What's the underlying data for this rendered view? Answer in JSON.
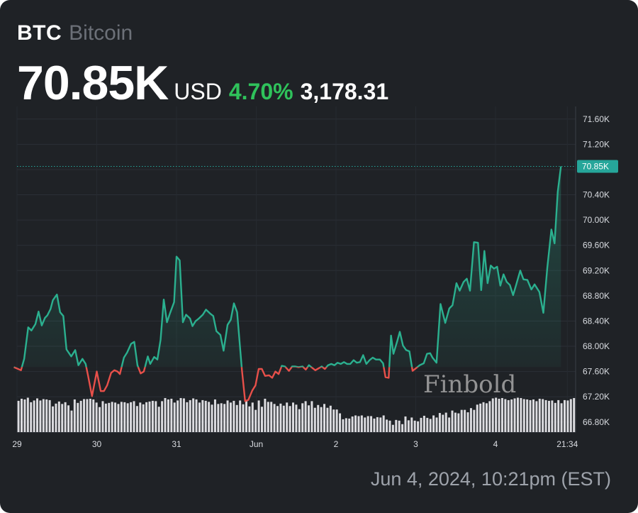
{
  "header": {
    "ticker": "BTC",
    "name": "Bitcoin"
  },
  "quote": {
    "price": "70.85K",
    "currency": "USD",
    "change_pct": "4.70%",
    "change_abs": "3,178.31"
  },
  "footer": {
    "timestamp": "Jun 4, 2024, 10:21pm (EST)"
  },
  "watermark": "Finbold",
  "colors": {
    "background": "#1f2226",
    "up": "#2bb08f",
    "down": "#e8504a",
    "positive_text": "#2fc25b",
    "volume": "#dcdce0",
    "last_price_tag": "#26a69a"
  },
  "chart_data": {
    "type": "line",
    "x_unit": "days since 00:00, May 29",
    "ylim": [
      66640,
      71800
    ],
    "y_ticks": [
      {
        "value": 71600,
        "label": "71.60K"
      },
      {
        "value": 71200,
        "label": "71.20K"
      },
      {
        "value": 70800,
        "label": "70.80K"
      },
      {
        "value": 70400,
        "label": "70.40K"
      },
      {
        "value": 70000,
        "label": "70.00K"
      },
      {
        "value": 69600,
        "label": "69.60K"
      },
      {
        "value": 69200,
        "label": "69.20K"
      },
      {
        "value": 68800,
        "label": "68.80K"
      },
      {
        "value": 68400,
        "label": "68.40K"
      },
      {
        "value": 68000,
        "label": "68.00K"
      },
      {
        "value": 67600,
        "label": "67.60K"
      },
      {
        "value": 67200,
        "label": "67.20K"
      },
      {
        "value": 66800,
        "label": "66.80K"
      }
    ],
    "x_ticks": [
      {
        "value": 0,
        "label": "29"
      },
      {
        "value": 1,
        "label": "30"
      },
      {
        "value": 2,
        "label": "31"
      },
      {
        "value": 3,
        "label": "Jun"
      },
      {
        "value": 4,
        "label": "2"
      },
      {
        "value": 5,
        "label": "3"
      },
      {
        "value": 6,
        "label": "4"
      },
      {
        "value": 6.9,
        "label": "21:34"
      }
    ],
    "last_price": {
      "value": 70850,
      "label": "70.85K"
    },
    "baseline": 67670,
    "series": [
      {
        "points": [
          [
            -0.04,
            67670
          ],
          [
            0.05,
            67620
          ],
          [
            0.09,
            67800
          ],
          [
            0.14,
            68300
          ],
          [
            0.18,
            68250
          ],
          [
            0.23,
            68350
          ],
          [
            0.27,
            68550
          ],
          [
            0.31,
            68330
          ],
          [
            0.35,
            68450
          ],
          [
            0.38,
            68490
          ],
          [
            0.42,
            68590
          ],
          [
            0.45,
            68730
          ],
          [
            0.5,
            68820
          ],
          [
            0.54,
            68540
          ],
          [
            0.58,
            68480
          ],
          [
            0.62,
            67950
          ],
          [
            0.68,
            67840
          ],
          [
            0.73,
            67940
          ],
          [
            0.77,
            67700
          ],
          [
            0.82,
            67800
          ],
          [
            0.86,
            67720
          ],
          [
            0.89,
            67540
          ],
          [
            0.94,
            67210
          ],
          [
            1.0,
            67600
          ],
          [
            1.05,
            67290
          ],
          [
            1.09,
            67290
          ],
          [
            1.13,
            67380
          ],
          [
            1.18,
            67580
          ],
          [
            1.22,
            67620
          ],
          [
            1.26,
            67600
          ],
          [
            1.29,
            67560
          ],
          [
            1.34,
            67820
          ],
          [
            1.38,
            67900
          ],
          [
            1.43,
            68040
          ],
          [
            1.47,
            68070
          ],
          [
            1.51,
            67700
          ],
          [
            1.55,
            67570
          ],
          [
            1.59,
            67600
          ],
          [
            1.64,
            67840
          ],
          [
            1.67,
            67720
          ],
          [
            1.72,
            67830
          ],
          [
            1.76,
            67790
          ],
          [
            1.8,
            68100
          ],
          [
            1.84,
            68740
          ],
          [
            1.88,
            68380
          ],
          [
            1.92,
            68530
          ],
          [
            1.97,
            68700
          ],
          [
            2.0,
            69420
          ],
          [
            2.04,
            69360
          ],
          [
            2.08,
            68380
          ],
          [
            2.12,
            68500
          ],
          [
            2.17,
            68440
          ],
          [
            2.2,
            68320
          ],
          [
            2.24,
            68400
          ],
          [
            2.28,
            68440
          ],
          [
            2.33,
            68500
          ],
          [
            2.37,
            68580
          ],
          [
            2.42,
            68520
          ],
          [
            2.46,
            68480
          ],
          [
            2.5,
            68240
          ],
          [
            2.55,
            68180
          ],
          [
            2.59,
            67930
          ],
          [
            2.64,
            68340
          ],
          [
            2.68,
            68420
          ],
          [
            2.72,
            68680
          ],
          [
            2.76,
            68540
          ],
          [
            2.82,
            67620
          ],
          [
            2.86,
            67130
          ],
          [
            2.9,
            67150
          ],
          [
            2.95,
            67300
          ],
          [
            2.99,
            67380
          ],
          [
            3.03,
            67640
          ],
          [
            3.07,
            67640
          ],
          [
            3.11,
            67530
          ],
          [
            3.16,
            67540
          ],
          [
            3.2,
            67500
          ],
          [
            3.24,
            67600
          ],
          [
            3.28,
            67560
          ],
          [
            3.32,
            67690
          ],
          [
            3.36,
            67680
          ],
          [
            3.41,
            67610
          ],
          [
            3.45,
            67680
          ],
          [
            3.49,
            67680
          ],
          [
            3.53,
            67670
          ],
          [
            3.58,
            67680
          ],
          [
            3.62,
            67630
          ],
          [
            3.66,
            67700
          ],
          [
            3.7,
            67660
          ],
          [
            3.74,
            67620
          ],
          [
            3.78,
            67650
          ],
          [
            3.82,
            67680
          ],
          [
            3.86,
            67640
          ],
          [
            3.9,
            67700
          ],
          [
            3.94,
            67720
          ],
          [
            3.98,
            67700
          ],
          [
            4.02,
            67740
          ],
          [
            4.06,
            67720
          ],
          [
            4.1,
            67750
          ],
          [
            4.14,
            67720
          ],
          [
            4.18,
            67720
          ],
          [
            4.22,
            67780
          ],
          [
            4.26,
            67740
          ],
          [
            4.3,
            67750
          ],
          [
            4.34,
            67860
          ],
          [
            4.38,
            67720
          ],
          [
            4.42,
            67780
          ],
          [
            4.46,
            67820
          ],
          [
            4.5,
            67790
          ],
          [
            4.55,
            67790
          ],
          [
            4.59,
            67730
          ],
          [
            4.62,
            67510
          ],
          [
            4.66,
            67500
          ],
          [
            4.69,
            68170
          ],
          [
            4.72,
            67880
          ],
          [
            4.77,
            68090
          ],
          [
            4.8,
            68230
          ],
          [
            4.84,
            68010
          ],
          [
            4.88,
            67940
          ],
          [
            4.92,
            67920
          ],
          [
            4.96,
            67610
          ],
          [
            5.0,
            67650
          ],
          [
            5.05,
            67700
          ],
          [
            5.1,
            67730
          ],
          [
            5.14,
            67880
          ],
          [
            5.18,
            67890
          ],
          [
            5.21,
            67820
          ],
          [
            5.26,
            67740
          ],
          [
            5.31,
            68670
          ],
          [
            5.37,
            68370
          ],
          [
            5.42,
            68600
          ],
          [
            5.46,
            68650
          ],
          [
            5.51,
            69000
          ],
          [
            5.55,
            68880
          ],
          [
            5.6,
            69020
          ],
          [
            5.64,
            69070
          ],
          [
            5.68,
            68880
          ],
          [
            5.73,
            69650
          ],
          [
            5.78,
            69640
          ],
          [
            5.82,
            68890
          ],
          [
            5.86,
            69510
          ],
          [
            5.9,
            69000
          ],
          [
            5.94,
            69280
          ],
          [
            5.98,
            69230
          ],
          [
            6.02,
            69260
          ],
          [
            6.06,
            68960
          ],
          [
            6.1,
            69140
          ],
          [
            6.14,
            69020
          ],
          [
            6.18,
            68970
          ],
          [
            6.22,
            68810
          ],
          [
            6.26,
            68980
          ],
          [
            6.31,
            69200
          ],
          [
            6.35,
            69060
          ],
          [
            6.4,
            69050
          ],
          [
            6.45,
            68900
          ],
          [
            6.49,
            68980
          ],
          [
            6.55,
            68860
          ],
          [
            6.6,
            68530
          ],
          [
            6.65,
            69250
          ],
          [
            6.7,
            69850
          ],
          [
            6.74,
            69630
          ],
          [
            6.78,
            70450
          ],
          [
            6.82,
            70850
          ]
        ]
      }
    ],
    "volume_series": [
      90,
      96,
      94,
      99,
      86,
      91,
      97,
      91,
      95,
      94,
      92,
      74,
      82,
      88,
      81,
      86,
      77,
      62,
      94,
      84,
      90,
      95,
      95,
      96,
      94,
      85,
      72,
      89,
      82,
      84,
      87,
      85,
      81,
      87,
      86,
      83,
      86,
      89,
      75,
      85,
      80,
      86,
      88,
      90,
      89,
      73,
      89,
      98,
      94,
      96,
      85,
      91,
      98,
      97,
      86,
      92,
      97,
      94,
      85,
      92,
      90,
      87,
      79,
      94,
      81,
      83,
      81,
      91,
      85,
      90,
      78,
      91,
      80,
      93,
      74,
      85,
      64,
      91,
      73,
      96,
      87,
      87,
      81,
      75,
      82,
      76,
      85,
      75,
      85,
      79,
      66,
      83,
      89,
      77,
      89,
      70,
      78,
      72,
      81,
      70,
      76,
      65,
      65,
      54,
      37,
      40,
      39,
      45,
      48,
      46,
      48,
      42,
      46,
      46,
      39,
      43,
      42,
      48,
      36,
      33,
      21,
      35,
      33,
      23,
      45,
      34,
      42,
      33,
      31,
      41,
      47,
      41,
      38,
      48,
      42,
      55,
      50,
      56,
      42,
      62,
      56,
      54,
      64,
      64,
      57,
      69,
      64,
      79,
      82,
      86,
      83,
      89,
      97,
      99,
      96,
      98,
      95,
      92,
      94,
      97,
      99,
      98,
      95,
      94,
      92,
      94,
      89,
      96,
      95,
      92,
      90,
      91,
      84,
      92,
      83,
      92,
      91,
      95,
      98
    ]
  }
}
